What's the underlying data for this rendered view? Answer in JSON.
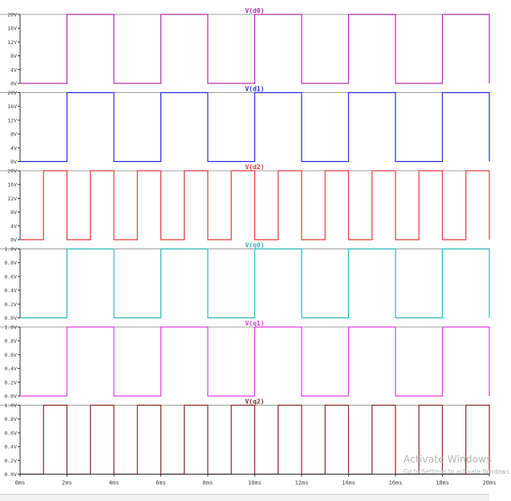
{
  "app": "LTspice waveform viewer",
  "time_axis": {
    "ticks": [
      "0ms",
      "2ms",
      "4ms",
      "6ms",
      "8ms",
      "10ms",
      "12ms",
      "14ms",
      "16ms",
      "18ms",
      "20ms"
    ],
    "start_ms": 0,
    "end_ms": 20
  },
  "panes": [
    {
      "name": "V(d0)",
      "color": "#b030b0",
      "y_ticks": [
        "20V",
        "16V",
        "12V",
        "8V",
        "4V",
        "0V"
      ],
      "ymin": 0,
      "ymax": 20,
      "low": 0,
      "high": 20,
      "transitions_ms": [
        2,
        4,
        6,
        8,
        10,
        12,
        14,
        16,
        18,
        20
      ]
    },
    {
      "name": "V(d1)",
      "color": "#2a2ae6",
      "y_ticks": [
        "20V",
        "16V",
        "12V",
        "8V",
        "4V",
        "0V"
      ],
      "ymin": 0,
      "ymax": 20,
      "low": 0,
      "high": 20,
      "transitions_ms": [
        2,
        4,
        6,
        8,
        10,
        12,
        14,
        16,
        18,
        20
      ]
    },
    {
      "name": "V(d2)",
      "color": "#e23c3c",
      "y_ticks": [
        "20V",
        "16V",
        "12V",
        "8V",
        "4V",
        "0V"
      ],
      "ymin": 0,
      "ymax": 20,
      "low": 0,
      "high": 20,
      "transitions_ms": [
        1,
        2,
        3,
        4,
        5,
        6,
        7,
        8,
        9,
        10,
        11,
        12,
        13,
        14,
        15,
        16,
        17,
        18,
        19,
        20
      ]
    },
    {
      "name": "V(q0)",
      "color": "#30b8c0",
      "y_ticks": [
        "1.0V",
        "0.8V",
        "0.6V",
        "0.4V",
        "0.2V",
        "0.0V"
      ],
      "ymin": 0,
      "ymax": 1,
      "low": 0,
      "high": 1,
      "transitions_ms": [
        2,
        4,
        6,
        8,
        10,
        12,
        14,
        16,
        18,
        20
      ]
    },
    {
      "name": "V(q1)",
      "color": "#e040e0",
      "y_ticks": [
        "1.0V",
        "0.8V",
        "0.6V",
        "0.4V",
        "0.2V",
        "0.0V"
      ],
      "ymin": 0,
      "ymax": 1,
      "low": 0,
      "high": 1,
      "transitions_ms": [
        2,
        4,
        6,
        8,
        10,
        12,
        14,
        16,
        18,
        20
      ]
    },
    {
      "name": "V(q2)",
      "color": "#8a2a2a",
      "y_ticks": [
        "1.0V",
        "0.8V",
        "0.6V",
        "0.4V",
        "0.2V",
        "0.0V"
      ],
      "ymin": 0,
      "ymax": 1,
      "low": 0,
      "high": 1,
      "transitions_ms": [
        1,
        2,
        3,
        4,
        5,
        6,
        7,
        8,
        9,
        10,
        11,
        12,
        13,
        14,
        15,
        16,
        17,
        18,
        19,
        20
      ]
    }
  ],
  "watermark": {
    "title": "Activate Windows",
    "subtitle": "Go to Settings to activate Windows."
  }
}
